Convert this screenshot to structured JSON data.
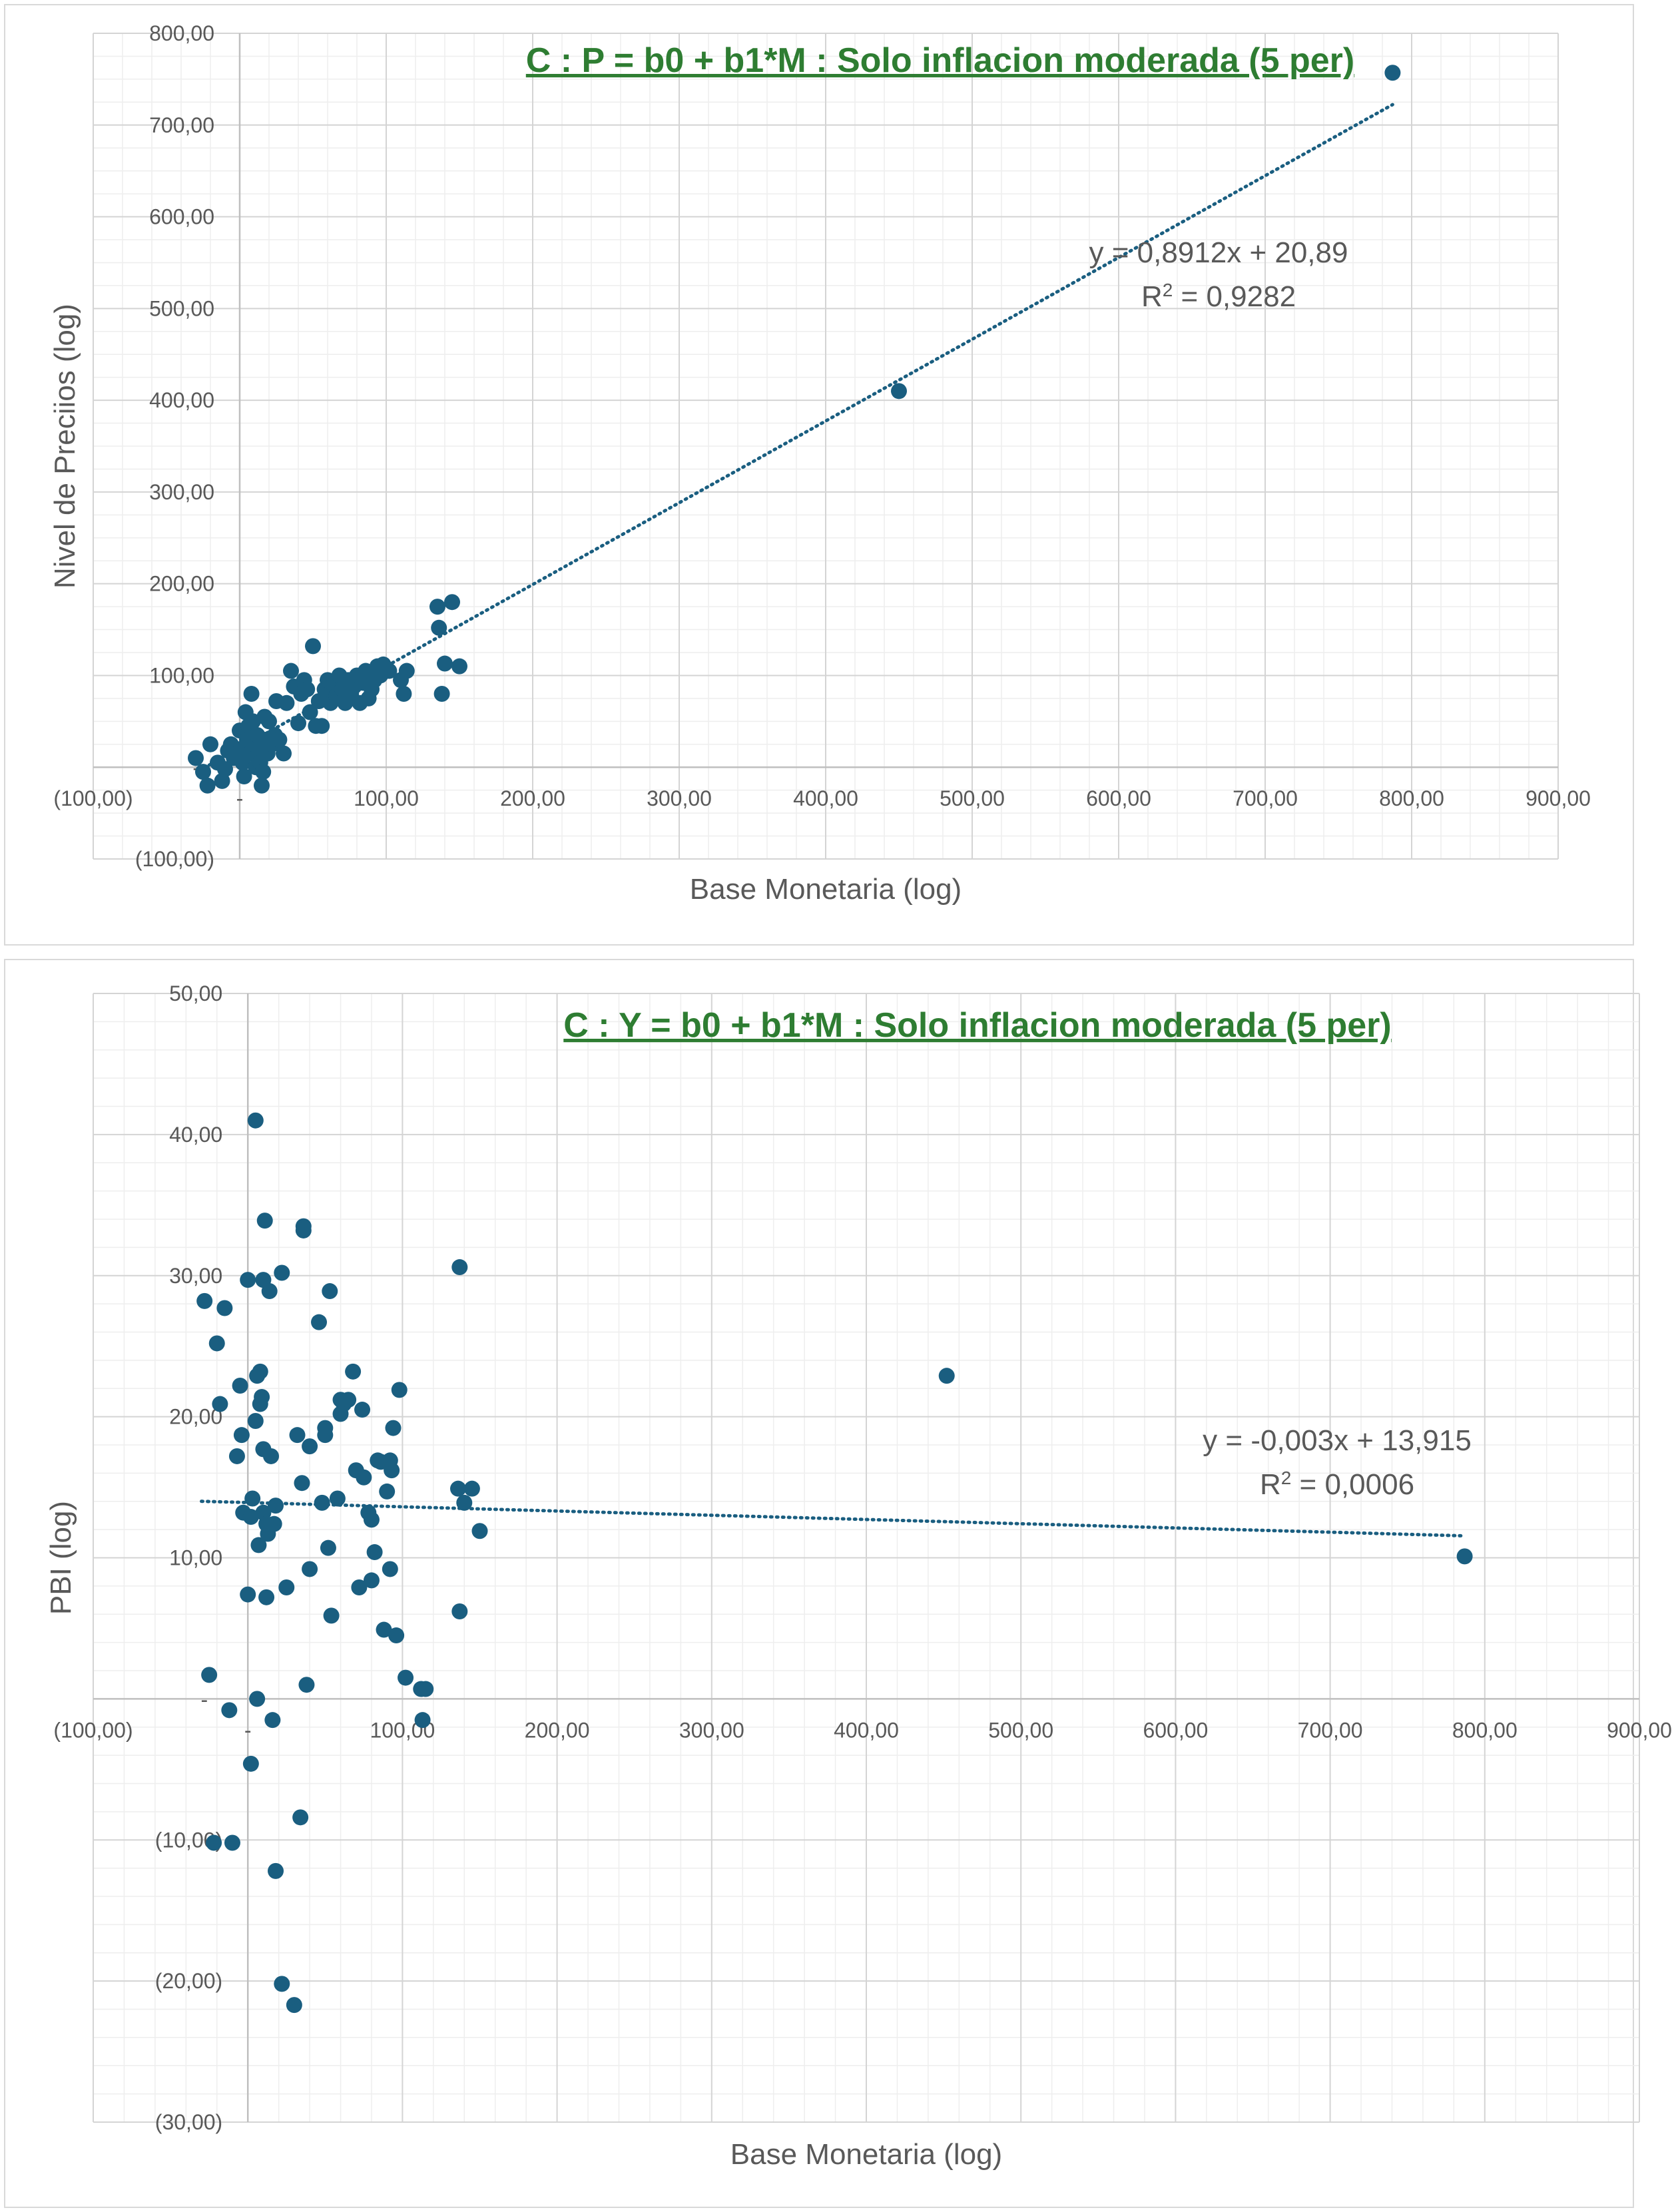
{
  "chart_data": [
    {
      "type": "scatter",
      "title": "C : P = b0 + b1*M : Solo inflacion moderada (5 per)",
      "xlabel": "Base Monetaria (log)",
      "ylabel": "Nivel de Preciios (log)",
      "xlim": [
        -100,
        900
      ],
      "ylim": [
        -100,
        800
      ],
      "x_ticks": [
        -100,
        0,
        100,
        200,
        300,
        400,
        500,
        600,
        700,
        800,
        900
      ],
      "x_tick_labels": [
        "(100,00)",
        "-",
        "100,00",
        "200,00",
        "300,00",
        "400,00",
        "500,00",
        "600,00",
        "700,00",
        "800,00",
        "900,00"
      ],
      "y_ticks": [
        -100,
        100,
        200,
        300,
        400,
        500,
        600,
        700,
        800
      ],
      "y_tick_labels": [
        "(100,00)",
        "100,00",
        "200,00",
        "300,00",
        "400,00",
        "500,00",
        "600,00",
        "700,00",
        "800,00"
      ],
      "grid": true,
      "point_color": "#1a5e80",
      "trend_color": "#1a5e80",
      "trendline": {
        "slope": 0.8912,
        "intercept": 20.89,
        "x_range": [
          -28,
          787
        ]
      },
      "equation": "y = 0,8912x + 20,89",
      "r2_label": "R",
      "r2_value": " = 0,9282",
      "points": [
        [
          -30,
          10
        ],
        [
          -25,
          -5
        ],
        [
          -22,
          -20
        ],
        [
          -20,
          25
        ],
        [
          -15,
          5
        ],
        [
          -12,
          -15
        ],
        [
          -10,
          -2
        ],
        [
          -8,
          18
        ],
        [
          -6,
          25
        ],
        [
          -4,
          10
        ],
        [
          -2,
          15
        ],
        [
          0,
          40
        ],
        [
          1,
          20
        ],
        [
          2,
          5
        ],
        [
          3,
          -10
        ],
        [
          4,
          60
        ],
        [
          5,
          30
        ],
        [
          6,
          45
        ],
        [
          7,
          15
        ],
        [
          8,
          80
        ],
        [
          9,
          50
        ],
        [
          10,
          25
        ],
        [
          11,
          0
        ],
        [
          12,
          35
        ],
        [
          13,
          20
        ],
        [
          14,
          5
        ],
        [
          15,
          -20
        ],
        [
          16,
          -5
        ],
        [
          17,
          55
        ],
        [
          18,
          30
        ],
        [
          19,
          15
        ],
        [
          20,
          50
        ],
        [
          22,
          25
        ],
        [
          24,
          35
        ],
        [
          25,
          72
        ],
        [
          27,
          30
        ],
        [
          30,
          15
        ],
        [
          32,
          70
        ],
        [
          35,
          105
        ],
        [
          37,
          88
        ],
        [
          40,
          48
        ],
        [
          42,
          80
        ],
        [
          44,
          95
        ],
        [
          46,
          85
        ],
        [
          48,
          60
        ],
        [
          50,
          132
        ],
        [
          52,
          45
        ],
        [
          54,
          72
        ],
        [
          56,
          45
        ],
        [
          58,
          85
        ],
        [
          60,
          95
        ],
        [
          62,
          70
        ],
        [
          64,
          90
        ],
        [
          66,
          78
        ],
        [
          68,
          100
        ],
        [
          70,
          85
        ],
        [
          72,
          70
        ],
        [
          74,
          95
        ],
        [
          76,
          80
        ],
        [
          78,
          88
        ],
        [
          80,
          100
        ],
        [
          82,
          70
        ],
        [
          84,
          92
        ],
        [
          86,
          105
        ],
        [
          88,
          75
        ],
        [
          90,
          85
        ],
        [
          92,
          95
        ],
        [
          94,
          110
        ],
        [
          96,
          100
        ],
        [
          98,
          112
        ],
        [
          100,
          108
        ],
        [
          102,
          105
        ],
        [
          110,
          95
        ],
        [
          112,
          80
        ],
        [
          114,
          105
        ],
        [
          135,
          175
        ],
        [
          136,
          152
        ],
        [
          138,
          80
        ],
        [
          140,
          113
        ],
        [
          145,
          180
        ],
        [
          150,
          110
        ],
        [
          450,
          410
        ],
        [
          787,
          757
        ]
      ]
    },
    {
      "type": "scatter",
      "title": "C : Y = b0 + b1*M : Solo inflacion moderada (5 per)",
      "xlabel": "Base Monetaria (log)",
      "ylabel": "PBI  (log)",
      "xlim": [
        -100,
        900
      ],
      "ylim": [
        -30,
        50
      ],
      "x_ticks": [
        -100,
        0,
        100,
        200,
        300,
        400,
        500,
        600,
        700,
        800,
        900
      ],
      "x_tick_labels": [
        "(100,00)",
        "-",
        "100,00",
        "200,00",
        "300,00",
        "400,00",
        "500,00",
        "600,00",
        "700,00",
        "800,00",
        "900,00"
      ],
      "y_ticks": [
        -30,
        -20,
        -10,
        10,
        20,
        30,
        40,
        50
      ],
      "y_tick_labels": [
        "(30,00)",
        "(20,00)",
        "(10,00)",
        "10,00",
        "20,00",
        "30,00",
        "40,00",
        "50,00"
      ],
      "grid": true,
      "point_color": "#1a5e80",
      "trend_color": "#1a5e80",
      "trendline": {
        "slope": -0.003,
        "intercept": 13.915,
        "x_range": [
          -30,
          787
        ]
      },
      "equation": "y = -0,003x + 13,915",
      "r2_label": "R",
      "r2_value": " = 0,0006",
      "points": [
        [
          -28,
          28.2
        ],
        [
          -25,
          1.7
        ],
        [
          -22,
          -10.2
        ],
        [
          -20,
          25.2
        ],
        [
          -18,
          20.9
        ],
        [
          -15,
          27.7
        ],
        [
          -12,
          -0.8
        ],
        [
          -10,
          -10.2
        ],
        [
          -7,
          17.2
        ],
        [
          -5,
          22.2
        ],
        [
          -4,
          18.7
        ],
        [
          -3,
          13.2
        ],
        [
          0,
          29.7
        ],
        [
          0,
          7.4
        ],
        [
          2,
          12.9
        ],
        [
          2,
          -4.6
        ],
        [
          3,
          14.2
        ],
        [
          5,
          19.7
        ],
        [
          6,
          22.9
        ],
        [
          5,
          41
        ],
        [
          6,
          0
        ],
        [
          7,
          10.9
        ],
        [
          8,
          20.9
        ],
        [
          8,
          23.2
        ],
        [
          9,
          21.4
        ],
        [
          10,
          17.7
        ],
        [
          10,
          13.2
        ],
        [
          10,
          29.7
        ],
        [
          11,
          33.9
        ],
        [
          12,
          12.4
        ],
        [
          12,
          7.2
        ],
        [
          13,
          11.7
        ],
        [
          14,
          28.9
        ],
        [
          15,
          17.2
        ],
        [
          16,
          -1.5
        ],
        [
          17,
          12.4
        ],
        [
          18,
          13.7
        ],
        [
          18,
          -12.2
        ],
        [
          22,
          30.2
        ],
        [
          22,
          -20.2
        ],
        [
          25,
          7.9
        ],
        [
          30,
          -21.7
        ],
        [
          32,
          18.7
        ],
        [
          34,
          -8.4
        ],
        [
          35,
          15.3
        ],
        [
          36,
          33.2
        ],
        [
          36,
          33.5
        ],
        [
          38,
          1
        ],
        [
          40,
          9.2
        ],
        [
          40,
          17.9
        ],
        [
          46,
          26.7
        ],
        [
          48,
          13.9
        ],
        [
          50,
          18.7
        ],
        [
          50,
          19.2
        ],
        [
          52,
          10.7
        ],
        [
          53,
          28.9
        ],
        [
          54,
          5.9
        ],
        [
          58,
          14.2
        ],
        [
          60,
          21.2
        ],
        [
          60,
          20.2
        ],
        [
          62,
          20.9
        ],
        [
          65,
          21.2
        ],
        [
          68,
          23.2
        ],
        [
          70,
          16.2
        ],
        [
          72,
          7.9
        ],
        [
          74,
          20.5
        ],
        [
          75,
          15.7
        ],
        [
          78,
          13.2
        ],
        [
          80,
          12.7
        ],
        [
          80,
          8.4
        ],
        [
          82,
          10.4
        ],
        [
          84,
          16.9
        ],
        [
          86,
          16.8
        ],
        [
          88,
          4.9
        ],
        [
          90,
          14.7
        ],
        [
          92,
          16.9
        ],
        [
          92,
          9.2
        ],
        [
          93,
          16.2
        ],
        [
          94,
          19.2
        ],
        [
          96,
          4.5
        ],
        [
          98,
          21.9
        ],
        [
          102,
          1.5
        ],
        [
          112,
          0.7
        ],
        [
          113,
          -1.5
        ],
        [
          115,
          0.7
        ],
        [
          136,
          14.9
        ],
        [
          137,
          30.6
        ],
        [
          137,
          6.2
        ],
        [
          140,
          13.9
        ],
        [
          145,
          14.9
        ],
        [
          150,
          11.9
        ],
        [
          452,
          22.9
        ],
        [
          787,
          10.1
        ]
      ]
    }
  ]
}
